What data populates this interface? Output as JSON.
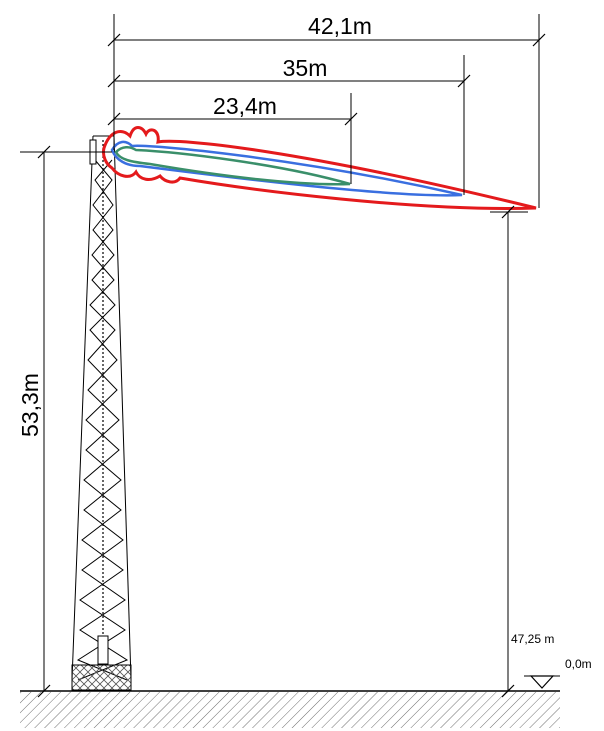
{
  "dimensions": {
    "horizontal_top": "42,1m",
    "horizontal_mid": "35m",
    "horizontal_low": "23,4m",
    "tower_height": "53,3m",
    "elevation_right": "47,25 m",
    "ground_level": "0,0m"
  },
  "colors": {
    "pattern_red": "#e41a1c",
    "pattern_blue": "#3a6fe0",
    "pattern_green": "#3a8f6a",
    "line": "#000000",
    "hatch": "#808080"
  }
}
